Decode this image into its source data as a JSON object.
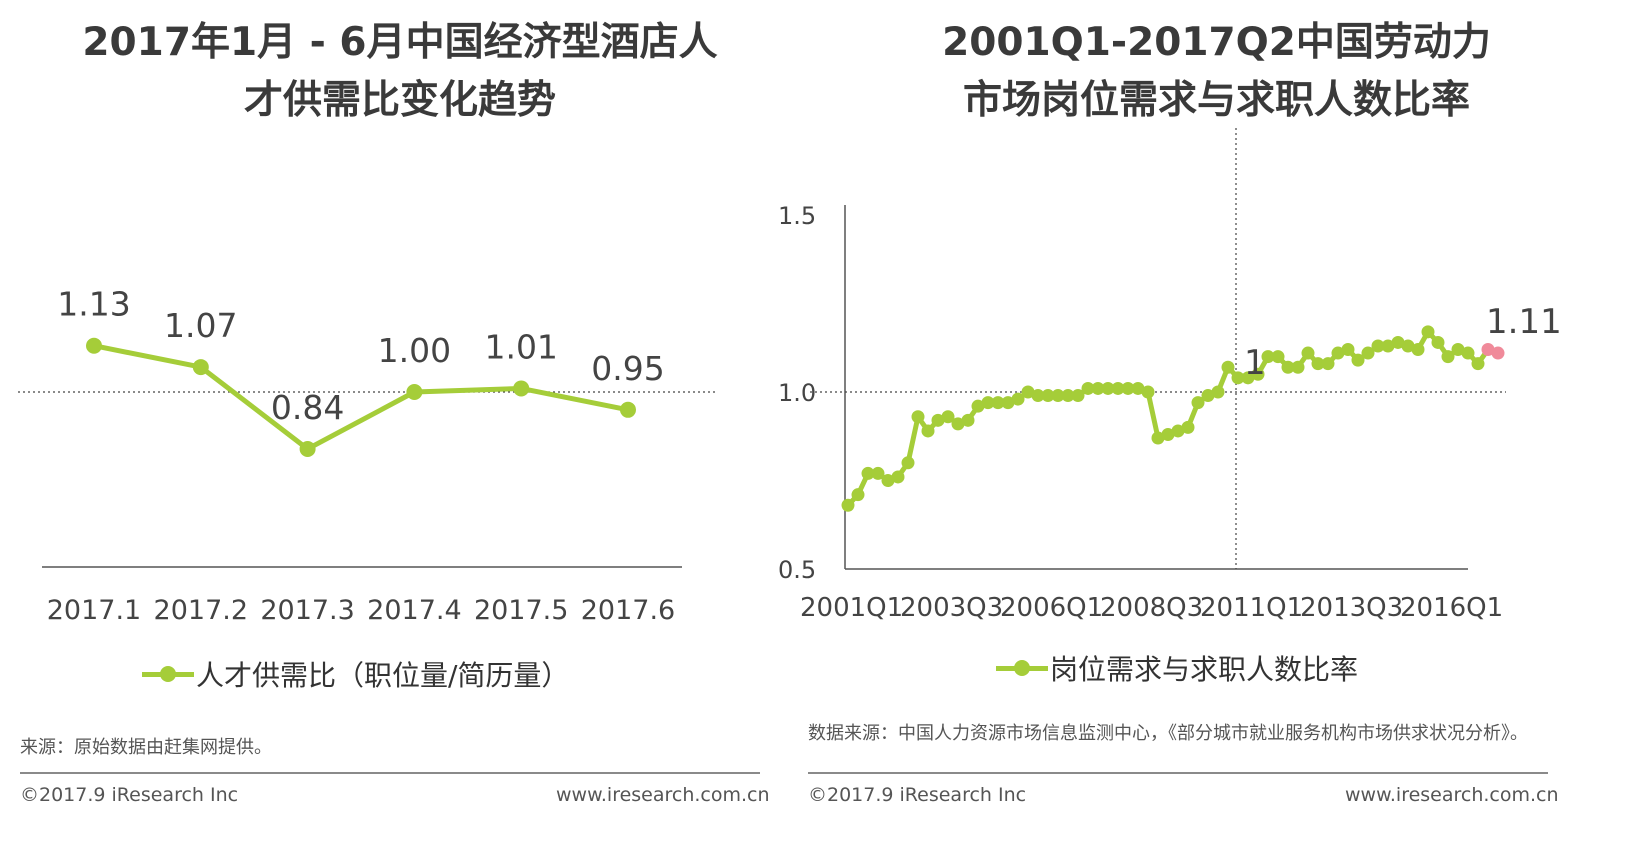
{
  "left": {
    "title_line1": "2017年1月 - 6月中国经济型酒店人",
    "title_line2": "才供需比变化趋势",
    "legend": "人才供需比（职位量/简历量）",
    "source": "来源：原始数据由赶集网提供。",
    "copyright": "©2017.9 iResearch Inc",
    "website": "www.iresearch.com.cn"
  },
  "right": {
    "title_line1": "2001Q1-2017Q2中国劳动力",
    "title_line2": "市场岗位需求与求职人数比率",
    "legend": "岗位需求与求职人数比率",
    "source": "数据来源：中国人力资源市场信息监测中心，《部分城市就业服务机构市场供求状况分析》。",
    "copyright": "©2017.9 iResearch Inc",
    "website": "www.iresearch.com.cn"
  },
  "colors": {
    "line": "#a5cd39",
    "highlight": "#f08a9a",
    "axis": "#555555"
  },
  "chart_data": [
    {
      "type": "line",
      "categories": [
        "2017.1",
        "2017.2",
        "2017.3",
        "2017.4",
        "2017.5",
        "2017.6"
      ],
      "values": [
        1.13,
        1.07,
        0.84,
        1.0,
        1.01,
        0.95
      ],
      "labels": [
        "1.13",
        "1.07",
        "0.84",
        "1.00",
        "1.01",
        "0.95"
      ],
      "series_name": "人才供需比（职位量/简历量）",
      "reference_line": 1.0,
      "ylim": [
        0.5,
        1.5
      ]
    },
    {
      "type": "line",
      "x_tick_labels": [
        "2001Q1",
        "2003Q3",
        "2006Q1",
        "2008Q3",
        "2011Q1",
        "2013Q3",
        "2016Q1"
      ],
      "y_tick_labels": [
        "0.5",
        "1.0",
        "1.5"
      ],
      "ylim": [
        0.5,
        1.5
      ],
      "reference_line": 1.0,
      "vertical_marker": "2011Q1",
      "series_name": "岗位需求与求职人数比率",
      "annotations": [
        {
          "quarter": "2011Q1",
          "text": "1"
        },
        {
          "quarter": "2017Q2",
          "text": "1.11"
        }
      ],
      "quarters": [
        "2001Q1",
        "2001Q2",
        "2001Q3",
        "2001Q4",
        "2002Q1",
        "2002Q2",
        "2002Q3",
        "2002Q4",
        "2003Q1",
        "2003Q2",
        "2003Q3",
        "2003Q4",
        "2004Q1",
        "2004Q2",
        "2004Q3",
        "2004Q4",
        "2005Q1",
        "2005Q2",
        "2005Q3",
        "2005Q4",
        "2006Q1",
        "2006Q2",
        "2006Q3",
        "2006Q4",
        "2007Q1",
        "2007Q2",
        "2007Q3",
        "2007Q4",
        "2008Q1",
        "2008Q2",
        "2008Q3",
        "2008Q4",
        "2009Q1",
        "2009Q2",
        "2009Q3",
        "2009Q4",
        "2010Q1",
        "2010Q2",
        "2010Q3",
        "2010Q4",
        "2011Q1",
        "2011Q2",
        "2011Q3",
        "2011Q4",
        "2012Q1",
        "2012Q2",
        "2012Q3",
        "2012Q4",
        "2013Q1",
        "2013Q2",
        "2013Q3",
        "2013Q4",
        "2014Q1",
        "2014Q2",
        "2014Q3",
        "2014Q4",
        "2015Q1",
        "2015Q2",
        "2015Q3",
        "2015Q4",
        "2016Q1",
        "2016Q2",
        "2016Q3",
        "2016Q4",
        "2017Q1",
        "2017Q2"
      ],
      "values": [
        0.68,
        0.71,
        0.77,
        0.77,
        0.75,
        0.76,
        0.8,
        0.93,
        0.89,
        0.92,
        0.93,
        0.91,
        0.92,
        0.96,
        0.97,
        0.97,
        0.97,
        0.98,
        1.0,
        0.99,
        0.99,
        0.99,
        0.99,
        0.99,
        1.01,
        1.01,
        1.01,
        1.01,
        1.01,
        1.01,
        1.0,
        0.87,
        0.88,
        0.89,
        0.9,
        0.97,
        0.99,
        1.0,
        1.07,
        1.04,
        1.04,
        1.05,
        1.1,
        1.1,
        1.07,
        1.07,
        1.11,
        1.08,
        1.08,
        1.11,
        1.12,
        1.09,
        1.11,
        1.13,
        1.13,
        1.14,
        1.13,
        1.12,
        1.17,
        1.14,
        1.1,
        1.12,
        1.11,
        1.08,
        1.12,
        1.11
      ]
    }
  ]
}
